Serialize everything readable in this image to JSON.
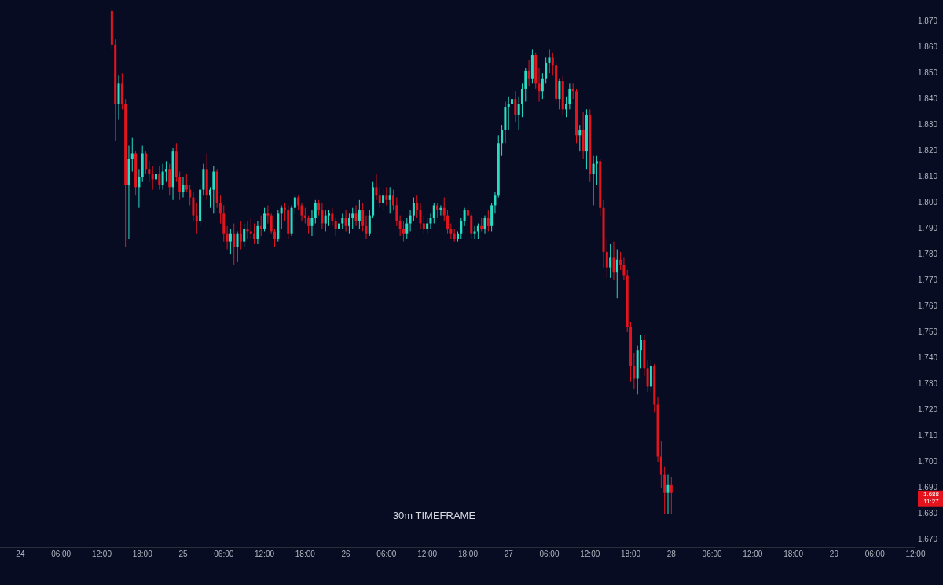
{
  "chart_data": {
    "type": "candlestick",
    "subtitle": "30m TIMEFRAME",
    "colors": [
      "#e3141e",
      "#e3141e",
      "#29dcc4",
      "#e3141e",
      "#e3141e",
      "#29dcc4",
      "#29dcc4",
      "#e3141e",
      "#29dcc4",
      "#29dcc4",
      "#e3141e",
      "#e3141e",
      "#e3141e",
      "#29dcc4",
      "#e3141e",
      "#29dcc4",
      "#29dcc4",
      "#e3141e",
      "#29dcc4",
      "#e3141e",
      "#e3141e",
      "#29dcc4",
      "#e3141e",
      "#e3141e",
      "#e3141e",
      "#e3141e",
      "#29dcc4",
      "#29dcc4",
      "#e3141e",
      "#29dcc4",
      "#29dcc4",
      "#e3141e",
      "#e3141e",
      "#e3141e",
      "#e3141e",
      "#29dcc4",
      "#e3141e",
      "#29dcc4",
      "#e3141e",
      "#29dcc4",
      "#e3141e",
      "#e3141e",
      "#e3141e",
      "#29dcc4",
      "#e3141e",
      "#29dcc4",
      "#e3141e",
      "#e3141e",
      "#e3141e",
      "#29dcc4",
      "#29dcc4",
      "#e3141e",
      "#e3141e",
      "#29dcc4",
      "#29dcc4",
      "#e3141e",
      "#e3141e",
      "#e3141e",
      "#e3141e",
      "#29dcc4",
      "#29dcc4",
      "#e3141e",
      "#e3141e",
      "#29dcc4",
      "#29dcc4",
      "#e3141e",
      "#e3141e",
      "#29dcc4",
      "#29dcc4",
      "#e3141e",
      "#29dcc4",
      "#29dcc4",
      "#e3141e",
      "#29dcc4",
      "#e3141e",
      "#e3141e",
      "#29dcc4",
      "#29dcc4",
      "#e3141e",
      "#e3141e",
      "#29dcc4",
      "#e3141e",
      "#29dcc4",
      "#e3141e",
      "#e3141e",
      "#e3141e",
      "#e3141e",
      "#29dcc4",
      "#29dcc4",
      "#29dcc4",
      "#e3141e",
      "#e3141e",
      "#e3141e",
      "#29dcc4",
      "#29dcc4",
      "#29dcc4",
      "#e3141e",
      "#29dcc4",
      "#e3141e",
      "#e3141e",
      "#e3141e",
      "#e3141e",
      "#29dcc4",
      "#29dcc4",
      "#29dcc4",
      "#e3141e",
      "#e3141e",
      "#29dcc4",
      "#29dcc4",
      "#e3141e",
      "#29dcc4",
      "#e3141e",
      "#29dcc4",
      "#29dcc4",
      "#29dcc4",
      "#29dcc4",
      "#29dcc4",
      "#29dcc4",
      "#29dcc4",
      "#e3141e",
      "#29dcc4",
      "#29dcc4",
      "#29dcc4",
      "#e3141e",
      "#29dcc4",
      "#e3141e",
      "#e3141e",
      "#29dcc4",
      "#29dcc4",
      "#29dcc4",
      "#e3141e",
      "#e3141e",
      "#29dcc4",
      "#e3141e",
      "#29dcc4",
      "#29dcc4",
      "#e3141e",
      "#e3141e",
      "#29dcc4",
      "#e3141e",
      "#29dcc4",
      "#e3141e",
      "#29dcc4",
      "#29dcc4",
      "#e3141e",
      "#e3141e",
      "#e3141e",
      "#29dcc4",
      "#e3141e",
      "#29dcc4",
      "#e3141e",
      "#e3141e",
      "#e3141e",
      "#e3141e",
      "#e3141e",
      "#29dcc4",
      "#29dcc4",
      "#e3141e",
      "#e3141e",
      "#29dcc4",
      "#e3141e",
      "#e3141e",
      "#e3141e",
      "#e3141e",
      "#29dcc4",
      "#e3141e"
    ],
    "xlim": [
      "--07-23T21:00",
      "--07-29T12:00"
    ],
    "xticks": [
      {
        "value": "--07-24",
        "label": "24"
      },
      {
        "value": "--07-24T06:00",
        "label": "06:00"
      },
      {
        "value": "--07-24T12:00",
        "label": "12:00"
      },
      {
        "value": "--07-24T18:00",
        "label": "18:00"
      },
      {
        "value": "--07-25",
        "label": "25"
      },
      {
        "value": "--07-25T06:00",
        "label": "06:00"
      },
      {
        "value": "--07-25T12:00",
        "label": "12:00"
      },
      {
        "value": "--07-25T18:00",
        "label": "18:00"
      },
      {
        "value": "--07-26",
        "label": "26"
      },
      {
        "value": "--07-26T06:00",
        "label": "06:00"
      },
      {
        "value": "--07-26T12:00",
        "label": "12:00"
      },
      {
        "value": "--07-26T18:00",
        "label": "18:00"
      },
      {
        "value": "--07-27",
        "label": "27"
      },
      {
        "value": "--07-27T06:00",
        "label": "06:00"
      },
      {
        "value": "--07-27T12:00",
        "label": "12:00"
      },
      {
        "value": "--07-27T18:00",
        "label": "18:00"
      },
      {
        "value": "--07-28",
        "label": "28"
      },
      {
        "value": "--07-28T06:00",
        "label": "06:00"
      },
      {
        "value": "--07-28T12:00",
        "label": "12:00"
      },
      {
        "value": "--07-28T18:00",
        "label": "18:00"
      },
      {
        "value": "--07-29",
        "label": "29"
      },
      {
        "value": "--07-29T06:00",
        "label": "06:00"
      },
      {
        "value": "--07-29T12:00",
        "label": "12:00"
      }
    ],
    "ylim": [
      1.667,
      1.8755
    ],
    "yticks": [
      {
        "value": 1.67,
        "label": "1.670"
      },
      {
        "value": 1.68,
        "label": "1.680"
      },
      {
        "value": 1.69,
        "label": "1.690"
      },
      {
        "value": 1.7,
        "label": "1.700"
      },
      {
        "value": 1.71,
        "label": "1.710"
      },
      {
        "value": 1.72,
        "label": "1.720"
      },
      {
        "value": 1.73,
        "label": "1.730"
      },
      {
        "value": 1.74,
        "label": "1.740"
      },
      {
        "value": 1.75,
        "label": "1.750"
      },
      {
        "value": 1.76,
        "label": "1.760"
      },
      {
        "value": 1.77,
        "label": "1.770"
      },
      {
        "value": 1.78,
        "label": "1.780"
      },
      {
        "value": 1.79,
        "label": "1.790"
      },
      {
        "value": 1.8,
        "label": "1.800"
      },
      {
        "value": 1.81,
        "label": "1.810"
      },
      {
        "value": 1.82,
        "label": "1.820"
      },
      {
        "value": 1.83,
        "label": "1.830"
      },
      {
        "value": 1.84,
        "label": "1.840"
      },
      {
        "value": 1.85,
        "label": "1.850"
      },
      {
        "value": 1.86,
        "label": "1.860"
      },
      {
        "value": 1.87,
        "label": "1.870"
      }
    ],
    "grid": false,
    "legend": false,
    "annotations": [
      "1.688\n11:27"
    ],
    "x": [
      "--07-24T13:30",
      "--07-24T14:00",
      "--07-24T14:30",
      "--07-24T15:00",
      "--07-24T15:30",
      "--07-24T16:00",
      "--07-24T16:30",
      "--07-24T17:00",
      "--07-24T17:30",
      "--07-24T18:00",
      "--07-24T18:30",
      "--07-24T19:00",
      "--07-24T19:30",
      "--07-24T20:00",
      "--07-24T20:30",
      "--07-24T21:00",
      "--07-24T21:30",
      "--07-24T22:00",
      "--07-24T22:30",
      "--07-24T23:00",
      "--07-24T23:30",
      "--07-25T00:00",
      "--07-25T00:30",
      "--07-25T01:00",
      "--07-25T01:30",
      "--07-25T02:00",
      "--07-25T02:30",
      "--07-25T03:00",
      "--07-25T03:30",
      "--07-25T04:00",
      "--07-25T04:30",
      "--07-25T05:00",
      "--07-25T05:30",
      "--07-25T06:00",
      "--07-25T06:30",
      "--07-25T07:00",
      "--07-25T07:30",
      "--07-25T08:00",
      "--07-25T08:30",
      "--07-25T09:00",
      "--07-25T09:30",
      "--07-25T10:00",
      "--07-25T10:30",
      "--07-25T11:00",
      "--07-25T11:30",
      "--07-25T12:00",
      "--07-25T12:30",
      "--07-25T13:00",
      "--07-25T13:30",
      "--07-25T14:00",
      "--07-25T14:30",
      "--07-25T15:00",
      "--07-25T15:30",
      "--07-25T16:00",
      "--07-25T16:30",
      "--07-25T17:00",
      "--07-25T17:30",
      "--07-25T18:00",
      "--07-25T18:30",
      "--07-25T19:00",
      "--07-25T19:30",
      "--07-25T20:00",
      "--07-25T20:30",
      "--07-25T21:00",
      "--07-25T21:30",
      "--07-25T22:00",
      "--07-25T22:30",
      "--07-25T23:00",
      "--07-25T23:30",
      "--07-26T00:00",
      "--07-26T00:30",
      "--07-26T01:00",
      "--07-26T01:30",
      "--07-26T02:00",
      "--07-26T02:30",
      "--07-26T03:00",
      "--07-26T03:30",
      "--07-26T04:00",
      "--07-26T04:30",
      "--07-26T05:00",
      "--07-26T05:30",
      "--07-26T06:00",
      "--07-26T06:30",
      "--07-26T07:00",
      "--07-26T07:30",
      "--07-26T08:00",
      "--07-26T08:30",
      "--07-26T09:00",
      "--07-26T09:30",
      "--07-26T10:00",
      "--07-26T10:30",
      "--07-26T11:00",
      "--07-26T11:30",
      "--07-26T12:00",
      "--07-26T12:30",
      "--07-26T13:00",
      "--07-26T13:30",
      "--07-26T14:00",
      "--07-26T14:30",
      "--07-26T15:00",
      "--07-26T15:30",
      "--07-26T16:00",
      "--07-26T16:30",
      "--07-26T17:00",
      "--07-26T17:30",
      "--07-26T18:00",
      "--07-26T18:30",
      "--07-26T19:00",
      "--07-26T19:30",
      "--07-26T20:00",
      "--07-26T20:30",
      "--07-26T21:00",
      "--07-26T21:30",
      "--07-26T22:00",
      "--07-26T22:30",
      "--07-26T23:00",
      "--07-26T23:30",
      "--07-27T00:00",
      "--07-27T00:30",
      "--07-27T01:00",
      "--07-27T01:30",
      "--07-27T02:00",
      "--07-27T02:30",
      "--07-27T03:00",
      "--07-27T03:30",
      "--07-27T04:00",
      "--07-27T04:30",
      "--07-27T05:00",
      "--07-27T05:30",
      "--07-27T06:00",
      "--07-27T06:30",
      "--07-27T07:00",
      "--07-27T07:30",
      "--07-27T08:00",
      "--07-27T08:30",
      "--07-27T09:00",
      "--07-27T09:30",
      "--07-27T10:00",
      "--07-27T10:30",
      "--07-27T11:00",
      "--07-27T11:30",
      "--07-27T12:00",
      "--07-27T12:30",
      "--07-27T13:00",
      "--07-27T13:30",
      "--07-27T14:00",
      "--07-27T14:30",
      "--07-27T15:00",
      "--07-27T15:30",
      "--07-27T16:00",
      "--07-27T16:30",
      "--07-27T17:00",
      "--07-27T17:30",
      "--07-27T18:00",
      "--07-27T18:30",
      "--07-27T19:00",
      "--07-27T19:30",
      "--07-27T20:00",
      "--07-27T20:30",
      "--07-27T21:00",
      "--07-27T21:30",
      "--07-27T22:00",
      "--07-27T22:30",
      "--07-27T23:00",
      "--07-27T23:30",
      "--07-28T00:00"
    ],
    "ohlc": [
      [
        1.874,
        1.875,
        1.859,
        1.861
      ],
      [
        1.861,
        1.863,
        1.824,
        1.838
      ],
      [
        1.838,
        1.849,
        1.832,
        1.846
      ],
      [
        1.846,
        1.85,
        1.836,
        1.838
      ],
      [
        1.838,
        1.84,
        1.783,
        1.807
      ],
      [
        1.807,
        1.822,
        1.786,
        1.817
      ],
      [
        1.817,
        1.825,
        1.812,
        1.819
      ],
      [
        1.819,
        1.82,
        1.803,
        1.806
      ],
      [
        1.806,
        1.813,
        1.798,
        1.81
      ],
      [
        1.81,
        1.822,
        1.808,
        1.819
      ],
      [
        1.819,
        1.82,
        1.811,
        1.813
      ],
      [
        1.813,
        1.816,
        1.808,
        1.811
      ],
      [
        1.811,
        1.814,
        1.805,
        1.809
      ],
      [
        1.809,
        1.816,
        1.807,
        1.811
      ],
      [
        1.811,
        1.814,
        1.805,
        1.807
      ],
      [
        1.807,
        1.815,
        1.805,
        1.812
      ],
      [
        1.812,
        1.816,
        1.808,
        1.813
      ],
      [
        1.813,
        1.815,
        1.803,
        1.806
      ],
      [
        1.806,
        1.821,
        1.801,
        1.82
      ],
      [
        1.82,
        1.823,
        1.808,
        1.81
      ],
      [
        1.81,
        1.812,
        1.801,
        1.804
      ],
      [
        1.804,
        1.81,
        1.802,
        1.807
      ],
      [
        1.807,
        1.811,
        1.804,
        1.805
      ],
      [
        1.805,
        1.807,
        1.799,
        1.802
      ],
      [
        1.802,
        1.804,
        1.793,
        1.795
      ],
      [
        1.795,
        1.8,
        1.788,
        1.793
      ],
      [
        1.793,
        1.807,
        1.791,
        1.805
      ],
      [
        1.805,
        1.815,
        1.803,
        1.813
      ],
      [
        1.813,
        1.819,
        1.801,
        1.803
      ],
      [
        1.803,
        1.806,
        1.798,
        1.805
      ],
      [
        1.805,
        1.814,
        1.796,
        1.812
      ],
      [
        1.812,
        1.813,
        1.798,
        1.8
      ],
      [
        1.8,
        1.803,
        1.792,
        1.796
      ],
      [
        1.796,
        1.799,
        1.785,
        1.788
      ],
      [
        1.788,
        1.791,
        1.782,
        1.785
      ],
      [
        1.785,
        1.79,
        1.78,
        1.788
      ],
      [
        1.788,
        1.792,
        1.776,
        1.783
      ],
      [
        1.783,
        1.789,
        1.777,
        1.788
      ],
      [
        1.788,
        1.793,
        1.782,
        1.785
      ],
      [
        1.785,
        1.792,
        1.783,
        1.79
      ],
      [
        1.79,
        1.793,
        1.786,
        1.789
      ],
      [
        1.789,
        1.794,
        1.786,
        1.788
      ],
      [
        1.788,
        1.792,
        1.784,
        1.786
      ],
      [
        1.786,
        1.793,
        1.784,
        1.791
      ],
      [
        1.791,
        1.795,
        1.787,
        1.79
      ],
      [
        1.79,
        1.798,
        1.789,
        1.796
      ],
      [
        1.796,
        1.799,
        1.792,
        1.795
      ],
      [
        1.795,
        1.796,
        1.788,
        1.789
      ],
      [
        1.789,
        1.79,
        1.783,
        1.786
      ],
      [
        1.786,
        1.797,
        1.785,
        1.796
      ],
      [
        1.796,
        1.799,
        1.79,
        1.798
      ],
      [
        1.798,
        1.8,
        1.793,
        1.797
      ],
      [
        1.797,
        1.799,
        1.786,
        1.788
      ],
      [
        1.788,
        1.799,
        1.787,
        1.798
      ],
      [
        1.798,
        1.803,
        1.796,
        1.802
      ],
      [
        1.802,
        1.803,
        1.797,
        1.799
      ],
      [
        1.799,
        1.8,
        1.793,
        1.795
      ],
      [
        1.795,
        1.798,
        1.792,
        1.794
      ],
      [
        1.794,
        1.795,
        1.788,
        1.791
      ],
      [
        1.791,
        1.797,
        1.787,
        1.794
      ],
      [
        1.794,
        1.801,
        1.792,
        1.8
      ],
      [
        1.8,
        1.801,
        1.795,
        1.797
      ],
      [
        1.797,
        1.8,
        1.79,
        1.792
      ],
      [
        1.792,
        1.797,
        1.789,
        1.795
      ],
      [
        1.795,
        1.797,
        1.791,
        1.796
      ],
      [
        1.796,
        1.798,
        1.791,
        1.793
      ],
      [
        1.793,
        1.794,
        1.787,
        1.79
      ],
      [
        1.79,
        1.794,
        1.788,
        1.792
      ],
      [
        1.792,
        1.796,
        1.79,
        1.794
      ],
      [
        1.794,
        1.797,
        1.789,
        1.791
      ],
      [
        1.791,
        1.796,
        1.788,
        1.794
      ],
      [
        1.794,
        1.798,
        1.79,
        1.796
      ],
      [
        1.796,
        1.799,
        1.791,
        1.793
      ],
      [
        1.793,
        1.801,
        1.79,
        1.797
      ],
      [
        1.797,
        1.8,
        1.789,
        1.791
      ],
      [
        1.791,
        1.795,
        1.786,
        1.788
      ],
      [
        1.788,
        1.797,
        1.787,
        1.795
      ],
      [
        1.795,
        1.808,
        1.794,
        1.806
      ],
      [
        1.806,
        1.811,
        1.801,
        1.803
      ],
      [
        1.803,
        1.806,
        1.798,
        1.8
      ],
      [
        1.8,
        1.805,
        1.797,
        1.803
      ],
      [
        1.803,
        1.806,
        1.799,
        1.801
      ],
      [
        1.801,
        1.806,
        1.796,
        1.803
      ],
      [
        1.803,
        1.805,
        1.797,
        1.799
      ],
      [
        1.799,
        1.802,
        1.791,
        1.793
      ],
      [
        1.793,
        1.795,
        1.787,
        1.79
      ],
      [
        1.79,
        1.793,
        1.785,
        1.788
      ],
      [
        1.788,
        1.794,
        1.786,
        1.792
      ],
      [
        1.792,
        1.797,
        1.789,
        1.795
      ],
      [
        1.795,
        1.802,
        1.793,
        1.8
      ],
      [
        1.8,
        1.803,
        1.794,
        1.797
      ],
      [
        1.797,
        1.8,
        1.79,
        1.792
      ],
      [
        1.792,
        1.795,
        1.788,
        1.79
      ],
      [
        1.79,
        1.794,
        1.788,
        1.792
      ],
      [
        1.792,
        1.796,
        1.79,
        1.794
      ],
      [
        1.794,
        1.8,
        1.792,
        1.799
      ],
      [
        1.799,
        1.8,
        1.794,
        1.797
      ],
      [
        1.797,
        1.799,
        1.795,
        1.798
      ],
      [
        1.798,
        1.802,
        1.793,
        1.795
      ],
      [
        1.795,
        1.797,
        1.788,
        1.79
      ],
      [
        1.79,
        1.792,
        1.786,
        1.788
      ],
      [
        1.788,
        1.79,
        1.785,
        1.786
      ],
      [
        1.786,
        1.789,
        1.785,
        1.788
      ],
      [
        1.788,
        1.794,
        1.786,
        1.793
      ],
      [
        1.793,
        1.798,
        1.791,
        1.797
      ],
      [
        1.797,
        1.799,
        1.793,
        1.795
      ],
      [
        1.795,
        1.796,
        1.786,
        1.788
      ],
      [
        1.788,
        1.791,
        1.786,
        1.789
      ],
      [
        1.789,
        1.792,
        1.786,
        1.791
      ],
      [
        1.791,
        1.794,
        1.789,
        1.79
      ],
      [
        1.79,
        1.795,
        1.788,
        1.794
      ],
      [
        1.794,
        1.797,
        1.789,
        1.791
      ],
      [
        1.791,
        1.8,
        1.789,
        1.799
      ],
      [
        1.799,
        1.804,
        1.796,
        1.803
      ],
      [
        1.803,
        1.826,
        1.802,
        1.823
      ],
      [
        1.823,
        1.83,
        1.818,
        1.828
      ],
      [
        1.828,
        1.839,
        1.823,
        1.837
      ],
      [
        1.837,
        1.841,
        1.828,
        1.838
      ],
      [
        1.838,
        1.844,
        1.832,
        1.84
      ],
      [
        1.84,
        1.843,
        1.831,
        1.834
      ],
      [
        1.834,
        1.841,
        1.828,
        1.838
      ],
      [
        1.838,
        1.846,
        1.833,
        1.844
      ],
      [
        1.844,
        1.852,
        1.839,
        1.851
      ],
      [
        1.851,
        1.855,
        1.845,
        1.848
      ],
      [
        1.848,
        1.859,
        1.846,
        1.857
      ],
      [
        1.857,
        1.858,
        1.844,
        1.846
      ],
      [
        1.846,
        1.852,
        1.839,
        1.843
      ],
      [
        1.843,
        1.85,
        1.84,
        1.848
      ],
      [
        1.848,
        1.856,
        1.846,
        1.854
      ],
      [
        1.854,
        1.859,
        1.85,
        1.856
      ],
      [
        1.856,
        1.858,
        1.849,
        1.853
      ],
      [
        1.853,
        1.854,
        1.838,
        1.84
      ],
      [
        1.84,
        1.848,
        1.836,
        1.847
      ],
      [
        1.847,
        1.849,
        1.834,
        1.836
      ],
      [
        1.836,
        1.841,
        1.833,
        1.838
      ],
      [
        1.838,
        1.846,
        1.836,
        1.844
      ],
      [
        1.844,
        1.846,
        1.84,
        1.843
      ],
      [
        1.843,
        1.844,
        1.823,
        1.826
      ],
      [
        1.826,
        1.83,
        1.82,
        1.828
      ],
      [
        1.828,
        1.835,
        1.817,
        1.82
      ],
      [
        1.82,
        1.836,
        1.813,
        1.834
      ],
      [
        1.834,
        1.836,
        1.808,
        1.811
      ],
      [
        1.811,
        1.818,
        1.799,
        1.815
      ],
      [
        1.815,
        1.818,
        1.807,
        1.816
      ],
      [
        1.816,
        1.817,
        1.795,
        1.798
      ],
      [
        1.798,
        1.801,
        1.775,
        1.781
      ],
      [
        1.781,
        1.786,
        1.771,
        1.775
      ],
      [
        1.775,
        1.784,
        1.771,
        1.779
      ],
      [
        1.779,
        1.785,
        1.77,
        1.773
      ],
      [
        1.773,
        1.782,
        1.763,
        1.778
      ],
      [
        1.778,
        1.781,
        1.774,
        1.776
      ],
      [
        1.776,
        1.779,
        1.77,
        1.772
      ],
      [
        1.772,
        1.774,
        1.75,
        1.752
      ],
      [
        1.752,
        1.754,
        1.731,
        1.737
      ],
      [
        1.737,
        1.742,
        1.728,
        1.732
      ],
      [
        1.732,
        1.745,
        1.726,
        1.743
      ],
      [
        1.743,
        1.749,
        1.736,
        1.747
      ],
      [
        1.747,
        1.749,
        1.733,
        1.736
      ],
      [
        1.736,
        1.739,
        1.727,
        1.729
      ],
      [
        1.729,
        1.739,
        1.727,
        1.737
      ],
      [
        1.737,
        1.738,
        1.719,
        1.722
      ],
      [
        1.722,
        1.725,
        1.7,
        1.702
      ],
      [
        1.702,
        1.708,
        1.69,
        1.695
      ],
      [
        1.695,
        1.698,
        1.68,
        1.688
      ],
      [
        1.688,
        1.695,
        1.68,
        1.691
      ],
      [
        1.691,
        1.694,
        1.68,
        1.688
      ]
    ]
  }
}
